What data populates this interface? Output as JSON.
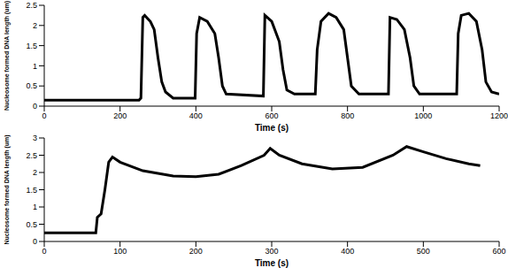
{
  "chart_data": [
    {
      "type": "line",
      "x_label": "Time (s)",
      "y_label": "Nucleosome formed DNA length (um)",
      "color": "#000000",
      "x": [
        0,
        250,
        255,
        260,
        265,
        280,
        290,
        300,
        310,
        320,
        340,
        398,
        402,
        410,
        430,
        450,
        460,
        470,
        480,
        578,
        582,
        600,
        620,
        630,
        640,
        660,
        715,
        720,
        730,
        750,
        770,
        790,
        800,
        810,
        830,
        908,
        912,
        930,
        950,
        965,
        975,
        990,
        1088,
        1092,
        1100,
        1120,
        1140,
        1155,
        1165,
        1180,
        1200
      ],
      "values": [
        0.15,
        0.15,
        0.2,
        2.2,
        2.25,
        2.1,
        1.9,
        1.2,
        0.6,
        0.35,
        0.2,
        0.2,
        1.8,
        2.2,
        2.1,
        1.8,
        1.2,
        0.5,
        0.3,
        0.25,
        2.25,
        2.1,
        1.6,
        0.9,
        0.4,
        0.3,
        0.3,
        1.4,
        2.1,
        2.3,
        2.2,
        1.9,
        1.2,
        0.5,
        0.3,
        0.3,
        2.2,
        2.15,
        1.9,
        1.2,
        0.5,
        0.3,
        0.3,
        1.8,
        2.25,
        2.3,
        2.1,
        1.4,
        0.6,
        0.35,
        0.3
      ],
      "xlim": [
        0,
        1200
      ],
      "xticks": [
        0,
        200,
        400,
        600,
        800,
        1000,
        1200
      ],
      "ylim": [
        0,
        2.5
      ],
      "yticks": [
        0,
        0.5,
        1,
        1.5,
        2,
        2.5
      ]
    },
    {
      "type": "line",
      "x_label": "Time (s)",
      "y_label": "Nucleosome formed DNA length (um)",
      "color": "#000000",
      "x": [
        0,
        68,
        70,
        75,
        80,
        85,
        90,
        100,
        130,
        170,
        200,
        230,
        260,
        290,
        298,
        310,
        340,
        380,
        420,
        460,
        478,
        500,
        530,
        560,
        575
      ],
      "values": [
        0.25,
        0.25,
        0.7,
        0.8,
        1.5,
        2.3,
        2.45,
        2.3,
        2.05,
        1.9,
        1.88,
        1.95,
        2.2,
        2.5,
        2.7,
        2.5,
        2.25,
        2.1,
        2.15,
        2.5,
        2.75,
        2.6,
        2.4,
        2.25,
        2.2
      ],
      "xlim": [
        0,
        600
      ],
      "xticks": [
        0,
        100,
        200,
        300,
        400,
        500,
        600
      ],
      "ylim": [
        0,
        3
      ],
      "yticks": [
        0,
        0.5,
        1,
        1.5,
        2,
        2.5,
        3
      ]
    }
  ]
}
